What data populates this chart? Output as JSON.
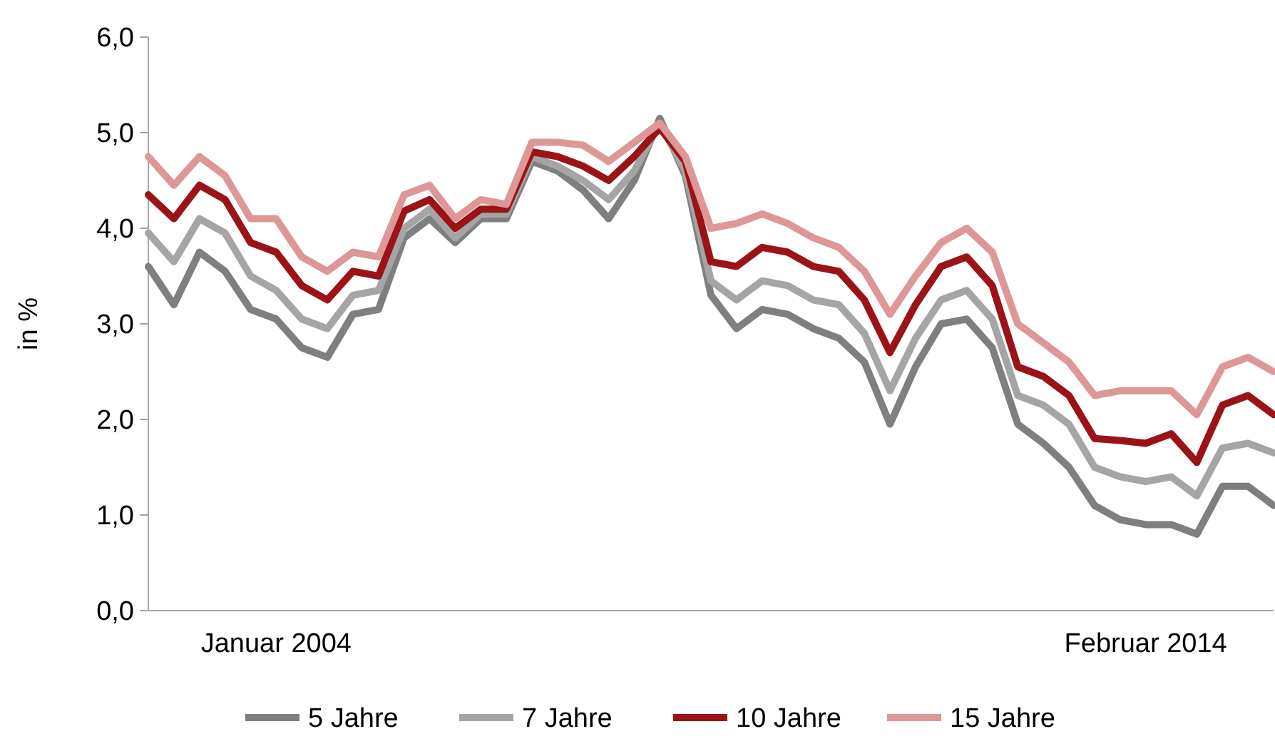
{
  "chart_data": {
    "type": "line",
    "ylabel": "in %",
    "categories": [
      null,
      null,
      null,
      null,
      null,
      "Januar 2004",
      null,
      null,
      null,
      null,
      null,
      null,
      null,
      null,
      null,
      null,
      null,
      null,
      null,
      null,
      null,
      null,
      null,
      null,
      null,
      null,
      null,
      null,
      null,
      null,
      null,
      null,
      null,
      null,
      null,
      null,
      null,
      null,
      null,
      "Februar 2014",
      null,
      null,
      null,
      null,
      null
    ],
    "ylim": [
      0,
      6
    ],
    "yticks": [
      {
        "value": 0,
        "label": "0,0"
      },
      {
        "value": 1,
        "label": "1,0"
      },
      {
        "value": 2,
        "label": "2,0"
      },
      {
        "value": 3,
        "label": "3,0"
      },
      {
        "value": 4,
        "label": "4,0"
      },
      {
        "value": 5,
        "label": "5,0"
      },
      {
        "value": 6,
        "label": "6,0"
      }
    ],
    "grid": false,
    "legend": "bottom",
    "marker": "none",
    "line_style": "solid",
    "series": [
      {
        "name": "5 Jahre",
        "color": "#7f7f7f",
        "values": [
          3.6,
          3.2,
          3.75,
          3.55,
          3.15,
          3.05,
          2.75,
          2.65,
          3.1,
          3.15,
          3.9,
          4.1,
          3.85,
          4.1,
          4.1,
          4.7,
          4.6,
          4.4,
          4.1,
          4.5,
          5.15,
          4.55,
          3.3,
          2.95,
          3.15,
          3.1,
          2.95,
          2.85,
          2.6,
          1.95,
          2.55,
          3.0,
          3.05,
          2.75,
          1.95,
          1.75,
          1.5,
          1.1,
          0.95,
          0.9,
          0.9,
          0.8,
          1.3,
          1.3,
          1.1
        ]
      },
      {
        "name": "7 Jahre",
        "color": "#a5a5a5",
        "values": [
          3.95,
          3.65,
          4.1,
          3.95,
          3.5,
          3.35,
          3.05,
          2.95,
          3.3,
          3.35,
          4.0,
          4.2,
          3.9,
          4.15,
          4.15,
          4.75,
          4.65,
          4.5,
          4.3,
          4.6,
          5.1,
          4.6,
          3.45,
          3.25,
          3.45,
          3.4,
          3.25,
          3.2,
          2.9,
          2.3,
          2.85,
          3.25,
          3.35,
          3.05,
          2.25,
          2.15,
          1.95,
          1.5,
          1.4,
          1.35,
          1.4,
          1.2,
          1.7,
          1.75,
          1.65
        ]
      },
      {
        "name": "10 Jahre",
        "color": "#9b1316",
        "values": [
          4.35,
          4.1,
          4.45,
          4.3,
          3.85,
          3.75,
          3.4,
          3.25,
          3.55,
          3.5,
          4.18,
          4.3,
          4.0,
          4.2,
          4.2,
          4.8,
          4.75,
          4.65,
          4.5,
          4.75,
          5.05,
          4.7,
          3.65,
          3.6,
          3.8,
          3.75,
          3.6,
          3.55,
          3.25,
          2.7,
          3.2,
          3.6,
          3.7,
          3.4,
          2.55,
          2.45,
          2.25,
          1.8,
          1.78,
          1.75,
          1.85,
          1.55,
          2.15,
          2.25,
          2.05
        ]
      },
      {
        "name": "15 Jahre",
        "color": "#dc9796",
        "values": [
          4.75,
          4.45,
          4.75,
          4.55,
          4.1,
          4.1,
          3.7,
          3.55,
          3.75,
          3.7,
          4.35,
          4.45,
          4.1,
          4.3,
          4.25,
          4.9,
          4.9,
          4.87,
          4.7,
          4.9,
          5.1,
          4.75,
          4.0,
          4.05,
          4.15,
          4.05,
          3.9,
          3.8,
          3.55,
          3.1,
          3.5,
          3.85,
          4.0,
          3.75,
          3.0,
          2.8,
          2.6,
          2.25,
          2.3,
          2.3,
          2.3,
          2.05,
          2.55,
          2.65,
          2.5
        ]
      }
    ]
  }
}
